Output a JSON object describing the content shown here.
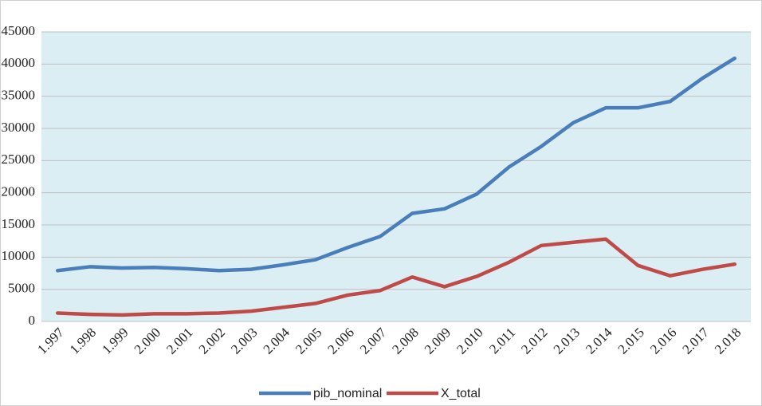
{
  "chart_data": {
    "type": "line",
    "categories": [
      "1.997",
      "1.998",
      "1.999",
      "2.000",
      "2.001",
      "2.002",
      "2.003",
      "2.004",
      "2.005",
      "2.006",
      "2.007",
      "2.008",
      "2.009",
      "2.010",
      "2.011",
      "2.012",
      "2.013",
      "2.014",
      "2.015",
      "2.016",
      "2.017",
      "2.018"
    ],
    "series": [
      {
        "name": "pib_nominal",
        "color": "#4a7ebb",
        "values": [
          7900,
          8500,
          8300,
          8400,
          8200,
          7900,
          8100,
          8800,
          9600,
          11500,
          13200,
          16800,
          17500,
          19800,
          24000,
          27200,
          30900,
          33200,
          33200,
          34200,
          37800,
          40900
        ]
      },
      {
        "name": "X_total",
        "color": "#be4b48",
        "values": [
          1300,
          1100,
          1000,
          1200,
          1200,
          1300,
          1600,
          2200,
          2800,
          4100,
          4800,
          6900,
          5400,
          7000,
          9200,
          11800,
          12300,
          12800,
          8700,
          7100,
          8100,
          8900
        ]
      }
    ],
    "ylim": [
      0,
      45000
    ],
    "yticks": [
      0,
      5000,
      10000,
      15000,
      20000,
      25000,
      30000,
      35000,
      40000,
      45000
    ],
    "grid": true,
    "legend": "bottom"
  }
}
